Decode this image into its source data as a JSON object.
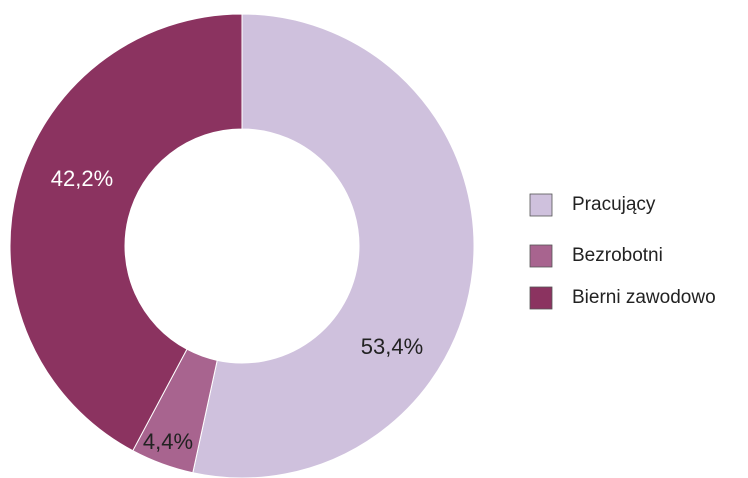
{
  "chart_data": {
    "type": "donut",
    "categories": [
      "Pracujący",
      "Bezrobotni",
      "Bierni zawodowo"
    ],
    "values": [
      53.4,
      4.4,
      42.2
    ],
    "value_labels": [
      "53,4%",
      "4,4%",
      "42,2%"
    ],
    "colors": [
      "#cfc1dd",
      "#a8648f",
      "#8b3360"
    ]
  }
}
